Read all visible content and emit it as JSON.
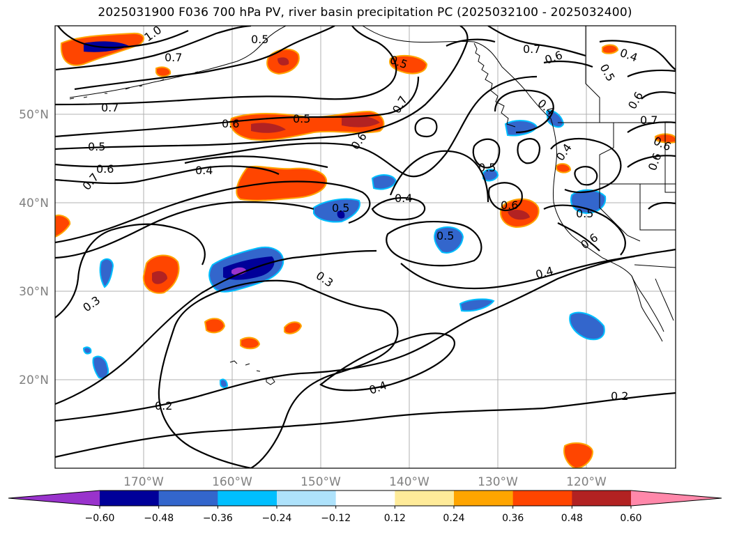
{
  "title": "2025031900 F036 700 hPa PV, river basin precipitation PC (2025032100 - 2025032400)",
  "lat_labels": [
    "50°N",
    "40°N",
    "30°N",
    "20°N"
  ],
  "lon_labels": [
    "170°W",
    "160°W",
    "150°W",
    "140°W",
    "130°W",
    "120°W"
  ],
  "contour_labels": [
    "1.0",
    "0.7",
    "0.5",
    "0.7",
    "0.6",
    "0.7",
    "0.6",
    "0.4",
    "0.5",
    "0.7",
    "0.6",
    "0.7",
    "0.6",
    "0.5",
    "0.6",
    "0.5",
    "0.4",
    "0.7",
    "0.6",
    "0.5",
    "0.4",
    "0.6",
    "0.4",
    "0.5",
    "0.6",
    "0.5",
    "0.5",
    "0.6",
    "0.4",
    "0.3",
    "0.3",
    "0.4",
    "0.2",
    "0.2"
  ],
  "colorbar": {
    "ticks": [
      "−0.60",
      "−0.48",
      "−0.36",
      "−0.24",
      "−0.12",
      "0.12",
      "0.24",
      "0.36",
      "0.48",
      "0.60"
    ],
    "colors": [
      "#9933cc",
      "#000099",
      "#3366cc",
      "#00bfff",
      "#aee2fb",
      "#ffffff",
      "#ffeb99",
      "#ffa500",
      "#ff4500",
      "#b22222",
      "#ff88aa"
    ]
  },
  "shading_colors": {
    "neg_weak": "#aee2fb",
    "neg_mid": "#3366cc",
    "neg_strong": "#000099",
    "neg_extreme": "#9933cc",
    "pos_weak": "#ffeb99",
    "pos_mid": "#ffa500",
    "pos_strong": "#ff4500",
    "pos_extreme": "#b22222"
  }
}
